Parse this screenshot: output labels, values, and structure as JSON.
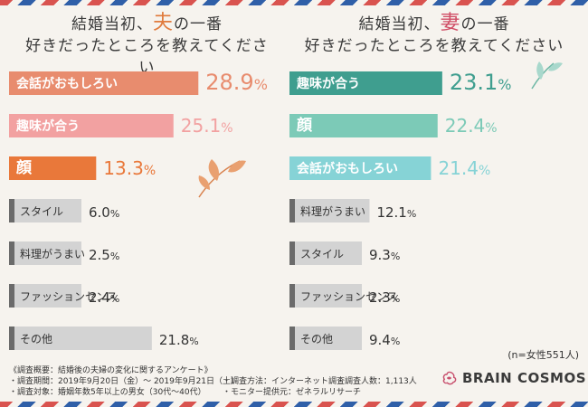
{
  "titles": {
    "husband": {
      "line1_a": "結婚当初、",
      "line1_hl": "夫",
      "line1_b": "の一番",
      "line2": "好きだったところを教えてください",
      "hl_color": "#e07a3c"
    },
    "wife": {
      "line1_a": "結婚当初、",
      "line1_hl": "妻",
      "line1_b": "の一番",
      "line2": "好きだったところを教えてください",
      "hl_color": "#d04e66"
    }
  },
  "chart_data": [
    {
      "type": "bar",
      "orientation": "horizontal",
      "subject": "husband",
      "categories": [
        "会話がおもしろい",
        "趣味が合う",
        "顔",
        "スタイル",
        "料理がうまい",
        "ファッションセンス",
        "その他"
      ],
      "values": [
        28.9,
        25.1,
        13.3,
        6.0,
        2.5,
        2.4,
        21.8
      ],
      "value_labels": [
        "28.9%",
        "25.1%",
        "13.3%",
        "6.0%",
        "2.5%",
        "2.4%",
        "21.8%"
      ],
      "colors": [
        "#e88c6e",
        "#f2a1a1",
        "#e9783a",
        "#d3d3d3",
        "#d3d3d3",
        "#d3d3d3",
        "#d3d3d3"
      ]
    },
    {
      "type": "bar",
      "orientation": "horizontal",
      "subject": "wife",
      "categories": [
        "趣味が合う",
        "顔",
        "会話がおもしろい",
        "料理がうまい",
        "スタイル",
        "ファッションセンス",
        "その他"
      ],
      "values": [
        23.1,
        22.4,
        21.4,
        12.1,
        9.3,
        2.3,
        9.4
      ],
      "value_labels": [
        "23.1%",
        "22.4%",
        "21.4%",
        "12.1%",
        "9.3%",
        "2.3%",
        "9.4%"
      ],
      "colors": [
        "#3f9e8f",
        "#7ccab7",
        "#86d3d6",
        "#d3d3d3",
        "#d3d3d3",
        "#d3d3d3",
        "#d3d3d3"
      ]
    }
  ],
  "sample_note": "(n=女性551人)",
  "notes": {
    "overview": "《調査概要：結婚後の夫婦の変化に関するアンケート》",
    "period": "・調査期間：2019年9月20日（金）～ 2019年9月21日（土）",
    "target": "・調査対象：婚姻年数5年以上の男女（30代〜40代）",
    "method": "・調査方法：インターネット調査",
    "count": "・調査人数：1,113人",
    "provider": "・モニター提供元：ゼネラルリサーチ"
  },
  "logo": {
    "text": "BRAIN COSMOS",
    "icon": "brain-cosmos-logo-icon",
    "color": "#c8506e"
  }
}
